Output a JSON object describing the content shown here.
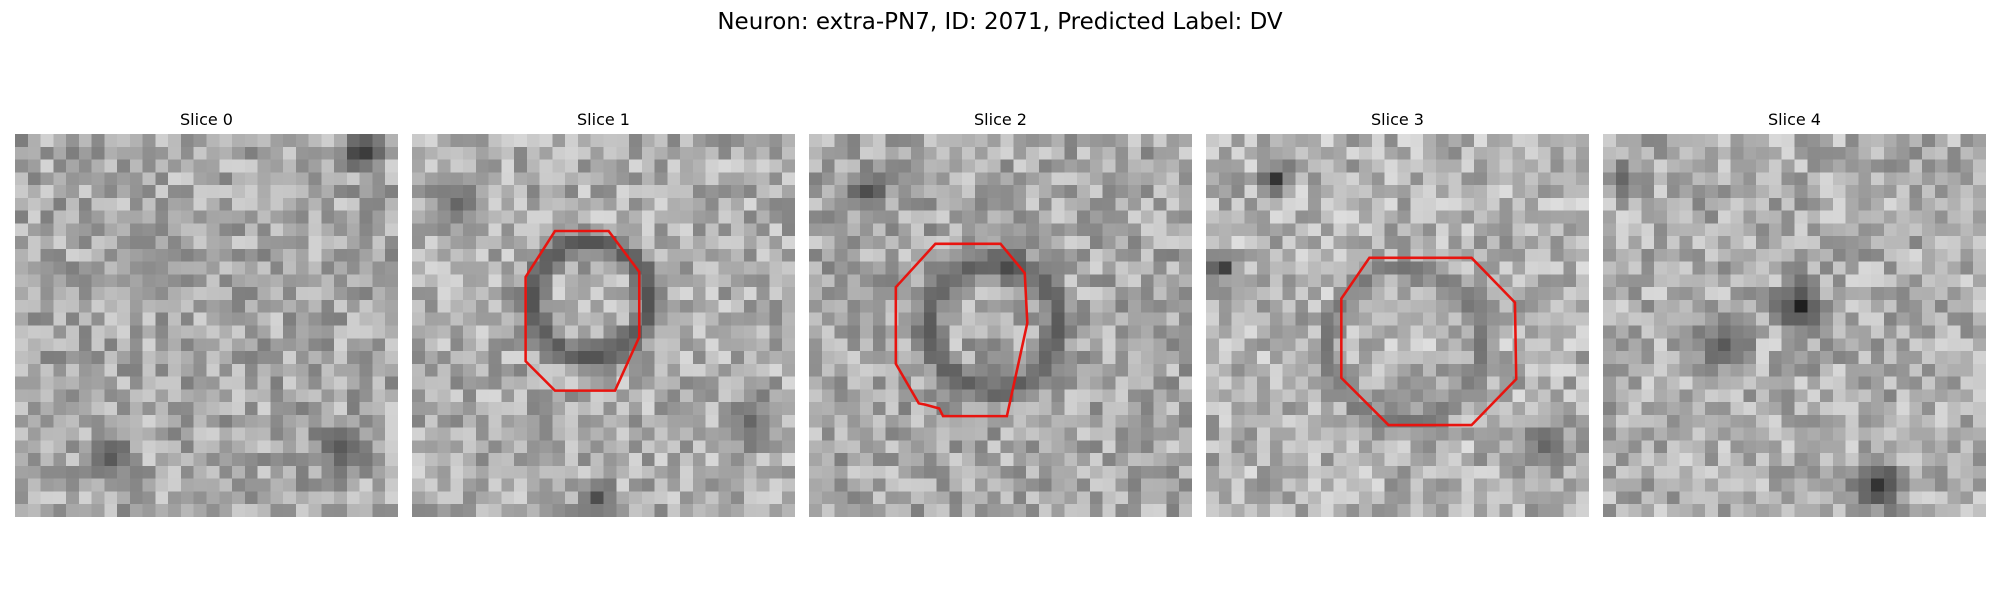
{
  "figure": {
    "title": "Neuron: extra-PN7, ID: 2071, Predicted Label: DV"
  },
  "panels": [
    {
      "title": "Slice 0",
      "seed": 11,
      "base": 0.66,
      "features": [
        {
          "cx": 26.8,
          "cy": 0.8,
          "r": 2.2,
          "v": 0.15
        },
        {
          "cx": 10,
          "cy": 10,
          "r": 4,
          "v": 0.55
        },
        {
          "cx": 25,
          "cy": 24,
          "r": 3,
          "v": 0.35
        },
        {
          "cx": 7,
          "cy": 25,
          "r": 2.5,
          "v": 0.35
        }
      ],
      "contour": false
    },
    {
      "title": "Slice 1",
      "seed": 23,
      "base": 0.68,
      "features": [
        {
          "cx": 3,
          "cy": 5,
          "r": 3,
          "v": 0.4
        },
        {
          "cx": 26,
          "cy": 22,
          "r": 3,
          "v": 0.4
        },
        {
          "cx": 14,
          "cy": 28,
          "r": 2,
          "v": 0.3
        }
      ],
      "ring": {
        "cx": 13.5,
        "cy": 12.5,
        "r": 4.5,
        "w": 1.6,
        "v": 0.32
      },
      "contour": true
    },
    {
      "title": "Slice 2",
      "seed": 37,
      "base": 0.66,
      "features": [
        {
          "cx": 4,
          "cy": 4,
          "r": 2.5,
          "v": 0.3
        },
        {
          "cx": 15,
          "cy": 10,
          "r": 1.6,
          "v": 0.1
        }
      ],
      "ring": {
        "cx": 14,
        "cy": 14.5,
        "r": 5,
        "w": 1.6,
        "v": 0.35
      },
      "contour": true
    },
    {
      "title": "Slice 3",
      "seed": 51,
      "base": 0.7,
      "features": [
        {
          "cx": 5,
          "cy": 3,
          "r": 1.8,
          "v": 0.2
        },
        {
          "cx": 0.8,
          "cy": 10,
          "r": 1.5,
          "v": 0.2
        },
        {
          "cx": 26,
          "cy": 24,
          "r": 3,
          "v": 0.4
        }
      ],
      "ring": {
        "cx": 15,
        "cy": 16,
        "r": 6,
        "w": 1.2,
        "v": 0.45
      },
      "contour": true
    },
    {
      "title": "Slice 4",
      "seed": 67,
      "base": 0.68,
      "features": [
        {
          "cx": 15,
          "cy": 13,
          "r": 2.5,
          "v": 0.12
        },
        {
          "cx": 9,
          "cy": 16,
          "r": 3,
          "v": 0.35
        },
        {
          "cx": 21,
          "cy": 27,
          "r": 2.8,
          "v": 0.2
        },
        {
          "cx": 1,
          "cy": 3,
          "r": 2,
          "v": 0.4
        }
      ],
      "contour": false
    }
  ],
  "colors": {
    "contour": "#e8140f",
    "colormap": "gray"
  }
}
